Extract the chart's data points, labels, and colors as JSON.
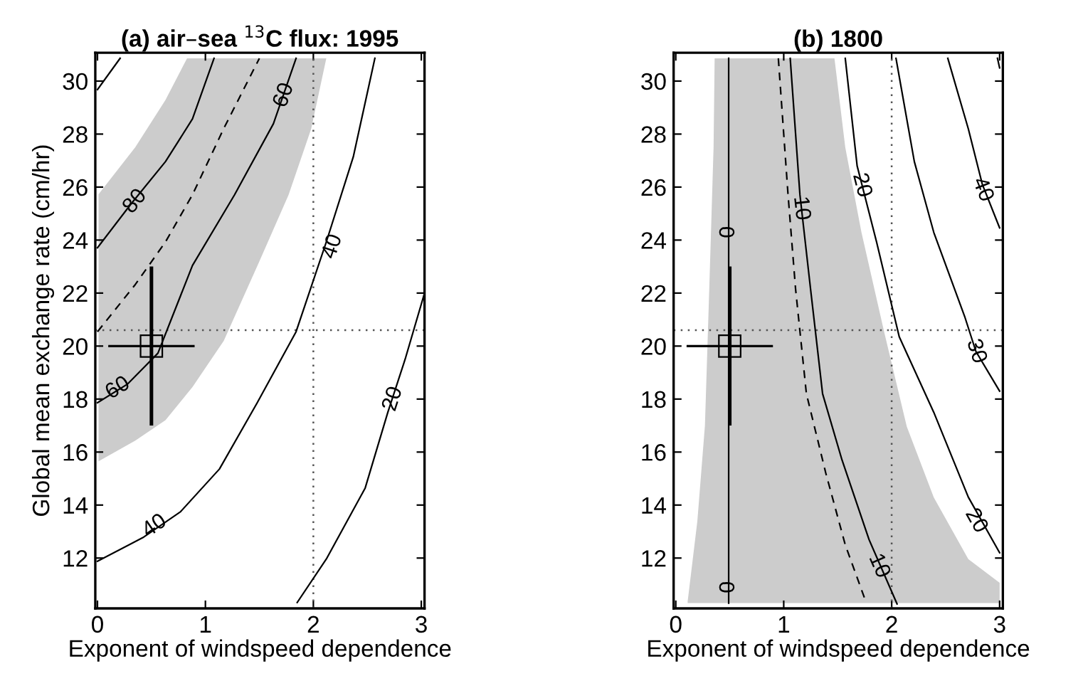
{
  "chart_data": [
    {
      "type": "line",
      "title": "(a) air–sea $^{13}$C flux: 1995",
      "xlabel": "Exponent of windspeed dependence",
      "ylabel": "Global mean exchange rate (cm/hr)",
      "xlim": [
        -0.02,
        3.03
      ],
      "ylim": [
        10.1,
        31.07
      ],
      "xticks": [
        0,
        1,
        2,
        3
      ],
      "yticks": [
        12,
        14,
        16,
        18,
        20,
        22,
        24,
        26,
        28,
        30
      ],
      "grid": false,
      "legend": false,
      "series": [
        {
          "type": "line",
          "color": "#cccccc",
          "x": [
            0.01,
            0.35,
            0.63,
            0.83,
            0.88,
            1.17,
            1.5,
            1.77,
            1.98,
            2.12
          ],
          "values": [
            null,
            null,
            null,
            null,
            null,
            null,
            null,
            null,
            null,
            null
          ],
          "upper": [
            25.73,
            27.5,
            29.29,
            30.86,
            30.86,
            30.86,
            30.86,
            30.86,
            30.86,
            30.86
          ],
          "lower": [
            15.65,
            16.43,
            17.2,
            18.2,
            18.45,
            20.2,
            23.2,
            25.7,
            28.2,
            30.86
          ]
        },
        {
          "type": "line",
          "color": "#000000",
          "line_style": "solid",
          "x": [
            0.0,
            0.21
          ],
          "values": [
            29.68,
            30.86
          ]
        },
        {
          "type": "line",
          "color": "#000000",
          "line_style": "solid",
          "x": [
            0.0,
            0.31,
            0.63,
            0.88,
            1.08
          ],
          "values": [
            23.71,
            25.36,
            26.96,
            28.57,
            30.86
          ]
        },
        {
          "type": "line",
          "color": "#000000",
          "line_style": "dashed",
          "x": [
            0.0,
            0.35,
            0.63,
            0.88,
            1.17,
            1.5
          ],
          "values": [
            20.54,
            22.32,
            23.93,
            25.71,
            28.21,
            30.86
          ]
        },
        {
          "type": "line",
          "color": "#000000",
          "line_style": "solid",
          "x": [
            0.0,
            0.28,
            0.56,
            0.88,
            1.27,
            1.63,
            1.84
          ],
          "values": [
            17.86,
            18.57,
            19.73,
            23.04,
            25.71,
            28.39,
            30.86
          ]
        },
        {
          "type": "line",
          "color": "#000000",
          "line_style": "solid",
          "x": [
            0.0,
            0.42,
            0.77,
            1.13,
            1.48,
            1.84,
            2.12,
            2.37,
            2.57
          ],
          "values": [
            11.88,
            12.77,
            13.75,
            15.36,
            17.86,
            20.54,
            23.93,
            27.14,
            30.86
          ]
        },
        {
          "type": "line",
          "color": "#000000",
          "line_style": "solid",
          "x": [
            1.85,
            2.12,
            2.48,
            2.69,
            2.85,
            3.03
          ],
          "values": [
            10.32,
            11.96,
            14.64,
            17.5,
            19.5,
            22.0
          ]
        },
        {
          "type": "scatter",
          "color": "#000000",
          "marker": "square",
          "x": [
            0.5
          ],
          "values": [
            20
          ],
          "errors": [
            3
          ],
          "xerrors": [
            0.4
          ]
        }
      ],
      "ref_lines": [
        {
          "axis": "x",
          "value": 2,
          "line_style": "dotted"
        },
        {
          "axis": "y",
          "value": 20.6,
          "line_style": "dotted"
        }
      ],
      "annotations": [
        {
          "text": "80",
          "x": 0.35,
          "y": 25.45
        },
        {
          "text": "60",
          "x": 1.73,
          "y": 29.46
        },
        {
          "text": "40",
          "x": 2.18,
          "y": 23.75
        },
        {
          "text": "60",
          "x": 0.19,
          "y": 18.4
        },
        {
          "text": "40",
          "x": 0.53,
          "y": 13.2
        },
        {
          "text": "20",
          "x": 2.74,
          "y": 18.0
        }
      ]
    },
    {
      "type": "line",
      "title": "(b) 1800",
      "xlabel": "Exponent of windspeed dependence",
      "xlim": [
        -0.02,
        3.03
      ],
      "ylim": [
        10.1,
        31.07
      ],
      "xticks": [
        0,
        1,
        2,
        3
      ],
      "yticks": [
        12,
        14,
        16,
        18,
        20,
        22,
        24,
        26,
        28,
        30
      ],
      "grid": false,
      "legend": false,
      "series": [
        {
          "type": "line",
          "color": "#cccccc",
          "x": [
            0.11,
            0.2,
            0.27,
            0.31,
            0.35,
            0.36,
            1.47,
            1.57,
            1.72,
            1.93,
            2.14,
            2.39,
            2.71,
            3.0
          ],
          "values": [
            null,
            null,
            null,
            null,
            null,
            null,
            null,
            null,
            null,
            null,
            null,
            null,
            null,
            null
          ],
          "upper": [
            10.36,
            13.4,
            17.0,
            22.14,
            27.5,
            30.86,
            30.86,
            27.5,
            24.29,
            20.54,
            16.96,
            14.29,
            11.96,
            11.07
          ],
          "lower": [
            10.3,
            10.3,
            10.3,
            10.3,
            10.3,
            10.3,
            10.3,
            10.3,
            10.3,
            10.3,
            10.3,
            10.3,
            10.3,
            10.3
          ]
        },
        {
          "type": "line",
          "color": "#000000",
          "line_style": "solid",
          "x": [
            0.49,
            0.49
          ],
          "values": [
            10.3,
            30.86
          ]
        },
        {
          "type": "line",
          "color": "#000000",
          "line_style": "dashed",
          "x": [
            0.95,
            1.04,
            1.11,
            1.21,
            1.39,
            1.57,
            1.76
          ],
          "values": [
            30.86,
            25.71,
            22.14,
            18.2,
            15.2,
            12.5,
            10.36
          ]
        },
        {
          "type": "line",
          "color": "#000000",
          "line_style": "solid",
          "x": [
            1.06,
            1.15,
            1.25,
            1.36,
            1.54,
            1.79,
            2.05
          ],
          "values": [
            30.86,
            25.71,
            22.1,
            18.2,
            15.7,
            12.7,
            10.27
          ]
        },
        {
          "type": "line",
          "color": "#000000",
          "line_style": "solid",
          "x": [
            1.57,
            1.68,
            1.86,
            2.07,
            2.39,
            2.71,
            3.0
          ],
          "values": [
            30.86,
            26.8,
            23.93,
            20.35,
            17.5,
            14.3,
            12.2
          ]
        },
        {
          "type": "line",
          "color": "#000000",
          "line_style": "solid",
          "x": [
            2.04,
            2.21,
            2.39,
            2.68,
            2.78,
            3.0
          ],
          "values": [
            30.86,
            26.96,
            24.29,
            21.07,
            19.8,
            18.3
          ]
        },
        {
          "type": "line",
          "color": "#000000",
          "line_style": "solid",
          "x": [
            2.52,
            2.71,
            2.84,
            3.0
          ],
          "values": [
            30.86,
            28.2,
            26.1,
            24.46
          ]
        },
        {
          "type": "line",
          "color": "#000000",
          "line_style": "solid",
          "x": [
            2.98,
            3.0
          ],
          "values": [
            30.86,
            30.5
          ]
        },
        {
          "type": "scatter",
          "color": "#000000",
          "marker": "square",
          "x": [
            0.5
          ],
          "values": [
            20
          ],
          "errors": [
            3
          ],
          "xerrors": [
            0.4
          ]
        }
      ],
      "ref_lines": [
        {
          "axis": "x",
          "value": 2,
          "line_style": "dotted"
        },
        {
          "axis": "y",
          "value": 20.6,
          "line_style": "dotted"
        }
      ],
      "annotations": [
        {
          "text": "0",
          "x": 0.49,
          "y": 24.3
        },
        {
          "text": "0",
          "x": 0.49,
          "y": 10.9
        },
        {
          "text": "10",
          "x": 1.16,
          "y": 25.2
        },
        {
          "text": "10",
          "x": 1.88,
          "y": 11.7
        },
        {
          "text": "20",
          "x": 1.72,
          "y": 26.07
        },
        {
          "text": "20",
          "x": 2.78,
          "y": 13.4
        },
        {
          "text": "30",
          "x": 2.78,
          "y": 19.8
        },
        {
          "text": "40",
          "x": 2.84,
          "y": 25.9
        }
      ]
    }
  ]
}
